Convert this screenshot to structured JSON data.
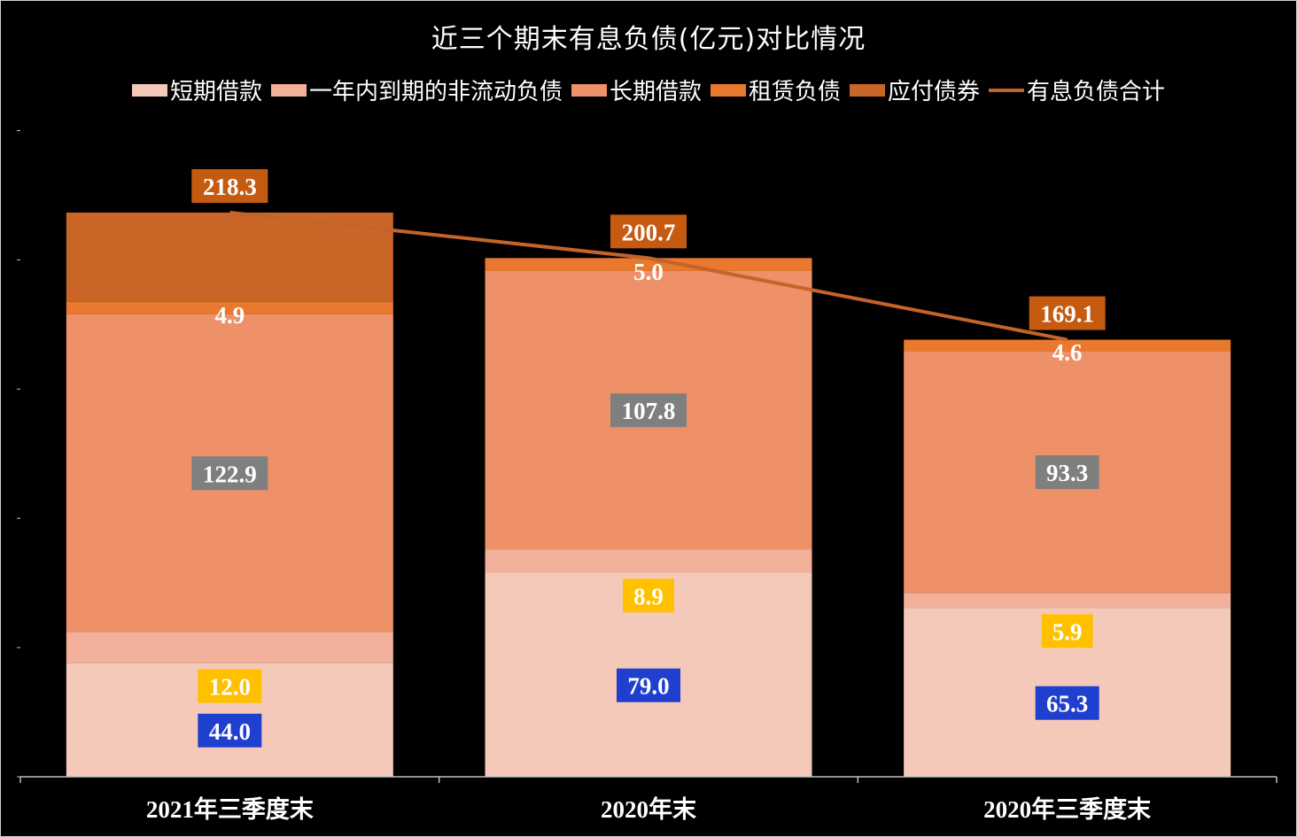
{
  "chart_data": {
    "type": "bar",
    "stacked": true,
    "title": "近三个期末有息负债(亿元)对比情况",
    "categories": [
      "2021年三季度末",
      "2020年末",
      "2020年三季度末"
    ],
    "series": [
      {
        "name": "短期借款",
        "color": "#f4c9b9",
        "values": [
          44.0,
          79.0,
          65.3
        ],
        "labels": [
          "44.0",
          "79.0",
          "65.3"
        ],
        "label_bg": "#1f3fcf",
        "label_color": "#ffffff"
      },
      {
        "name": "一年内到期的非流动负债",
        "color": "#f2b09a",
        "values": [
          12.0,
          8.9,
          5.9
        ],
        "labels": [
          "12.0",
          "8.9",
          "5.9"
        ],
        "label_bg": "#ffc000",
        "label_color": "#ffffff"
      },
      {
        "name": "长期借款",
        "color": "#ee9068",
        "values": [
          122.9,
          107.8,
          93.3
        ],
        "labels": [
          "122.9",
          "107.8",
          "93.3"
        ],
        "label_bg": "#7f7f7f",
        "label_color": "#ffffff"
      },
      {
        "name": "租赁负债",
        "color": "#e8792e",
        "values": [
          4.9,
          5.0,
          4.6
        ],
        "labels": [
          "4.9",
          "5.0",
          "4.6"
        ],
        "label_bg": null,
        "label_color": "#ffffff"
      },
      {
        "name": "应付债券",
        "color": "#c96627",
        "values": [
          34.5,
          0,
          0
        ],
        "labels": [
          "",
          "",
          ""
        ],
        "label_bg": null,
        "label_color": "#ffffff"
      }
    ],
    "total_line": {
      "name": "有息负债合计",
      "color": "#c4632a",
      "values": [
        218.3,
        200.7,
        169.1
      ],
      "labels": [
        "218.3",
        "200.7",
        "169.1"
      ],
      "label_bg": "#c55a11",
      "label_color": "#ffffff"
    },
    "ylim": [
      0,
      260
    ],
    "y_tick_step": 50,
    "y_tick_labels_visible": false,
    "grid": false,
    "legend_position": "top"
  }
}
